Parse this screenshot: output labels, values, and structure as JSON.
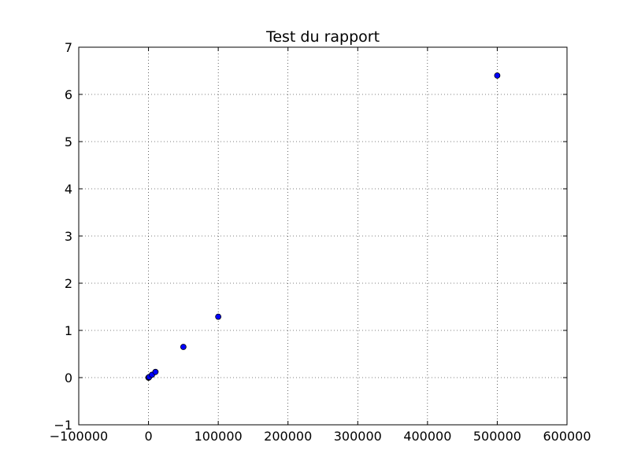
{
  "chart_data": {
    "type": "scatter",
    "title": "Test du rapport",
    "xlabel": "",
    "ylabel": "",
    "xlim": [
      -100000,
      600000
    ],
    "ylim": [
      -1,
      7
    ],
    "xticks": [
      -100000,
      0,
      100000,
      200000,
      300000,
      400000,
      500000,
      600000
    ],
    "xtick_labels": [
      "−100000",
      "0",
      "100000",
      "200000",
      "300000",
      "400000",
      "500000",
      "600000"
    ],
    "yticks": [
      -1,
      0,
      1,
      2,
      3,
      4,
      5,
      6,
      7
    ],
    "ytick_labels": [
      "−1",
      "0",
      "1",
      "2",
      "3",
      "4",
      "5",
      "6",
      "7"
    ],
    "grid": true,
    "series": [
      {
        "marker_color": "#0000ff",
        "points": [
          {
            "x": 0,
            "y": 0.0
          },
          {
            "x": 100,
            "y": 0.001
          },
          {
            "x": 1000,
            "y": 0.013
          },
          {
            "x": 5000,
            "y": 0.06
          },
          {
            "x": 10000,
            "y": 0.12
          },
          {
            "x": 50000,
            "y": 0.65
          },
          {
            "x": 100000,
            "y": 1.29
          },
          {
            "x": 500000,
            "y": 6.4
          }
        ]
      }
    ]
  }
}
